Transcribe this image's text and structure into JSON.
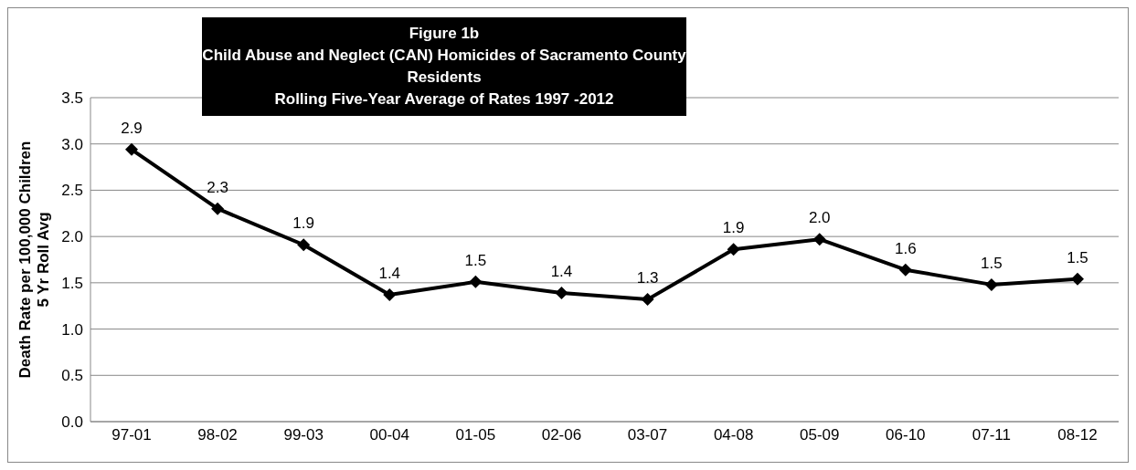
{
  "chart_data": {
    "type": "line",
    "title": "Figure 1b\nChild Abuse and Neglect (CAN) Homicides of Sacramento County Residents\nRolling Five-Year Average of Rates 1997 -2012",
    "ylabel": "Death Rate per 100,000 Children\n5 Yr Roll Avg",
    "categories": [
      "97-01",
      "98-02",
      "99-03",
      "00-04",
      "01-05",
      "02-06",
      "03-07",
      "04-08",
      "05-09",
      "06-10",
      "07-11",
      "08-12"
    ],
    "series": [
      {
        "color": "#000000",
        "values": [
          2.94,
          2.3,
          1.91,
          1.37,
          1.51,
          1.39,
          1.32,
          1.86,
          1.97,
          1.64,
          1.48,
          1.54
        ],
        "value_labels": [
          "2.9",
          "2.3",
          "1.9",
          "1.4",
          "1.5",
          "1.4",
          "1.3",
          "1.9",
          "2.0",
          "1.6",
          "1.5",
          "1.5"
        ]
      }
    ],
    "ylim": [
      0,
      3.5
    ],
    "yticks": [
      {
        "value": 0,
        "label": "0.0"
      },
      0.5,
      {
        "value": 1,
        "label": "1.0"
      },
      1.5,
      {
        "value": 2,
        "label": "2.0"
      },
      2.5,
      {
        "value": 3,
        "label": "3.0"
      },
      3.5
    ],
    "grid": "y",
    "legend": false,
    "marker": "diamond",
    "line_style": "solid"
  }
}
